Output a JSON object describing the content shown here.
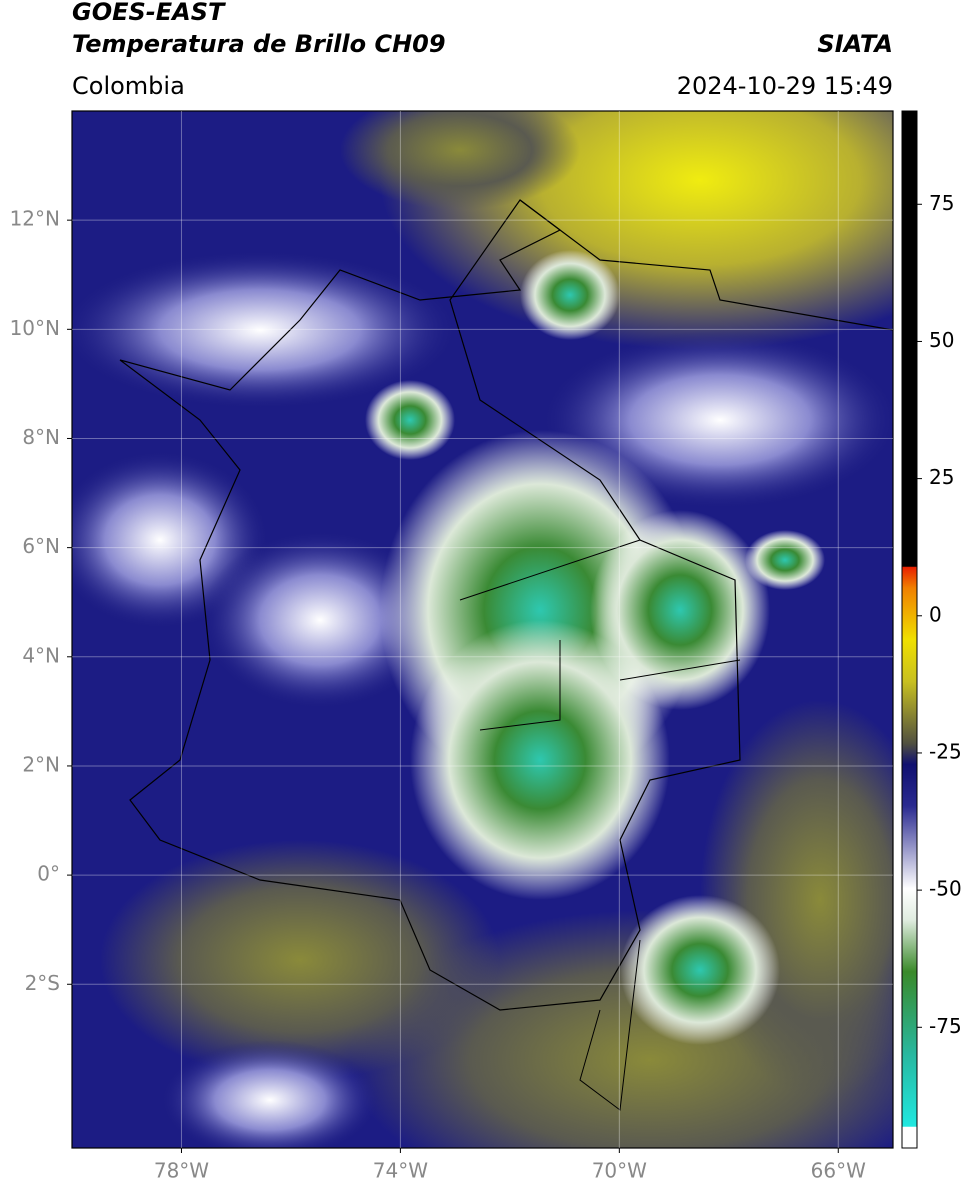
{
  "header": {
    "title": "GOES-EAST",
    "subtitle": "Temperatura de Brillo CH09",
    "region": "Colombia",
    "source": "SIATA",
    "datetime": "2024-10-29 15:49"
  },
  "map": {
    "xlim": [
      -80,
      -65
    ],
    "ylim": [
      -5,
      14
    ],
    "xticks": [
      {
        "value": -78,
        "label": "78°W"
      },
      {
        "value": -74,
        "label": "74°W"
      },
      {
        "value": -70,
        "label": "70°W"
      },
      {
        "value": -66,
        "label": "66°W"
      }
    ],
    "yticks": [
      {
        "value": 12,
        "label": "12°N"
      },
      {
        "value": 10,
        "label": "10°N"
      },
      {
        "value": 8,
        "label": "8°N"
      },
      {
        "value": 6,
        "label": "6°N"
      },
      {
        "value": 4,
        "label": "4°N"
      },
      {
        "value": 2,
        "label": "2°N"
      },
      {
        "value": 0,
        "label": "0°"
      },
      {
        "value": -2,
        "label": "2°S"
      }
    ],
    "grid": true
  },
  "colorbar": {
    "lim": [
      -97,
      92
    ],
    "ticks": [
      75,
      50,
      25,
      0,
      -25,
      -50,
      -75
    ]
  }
}
